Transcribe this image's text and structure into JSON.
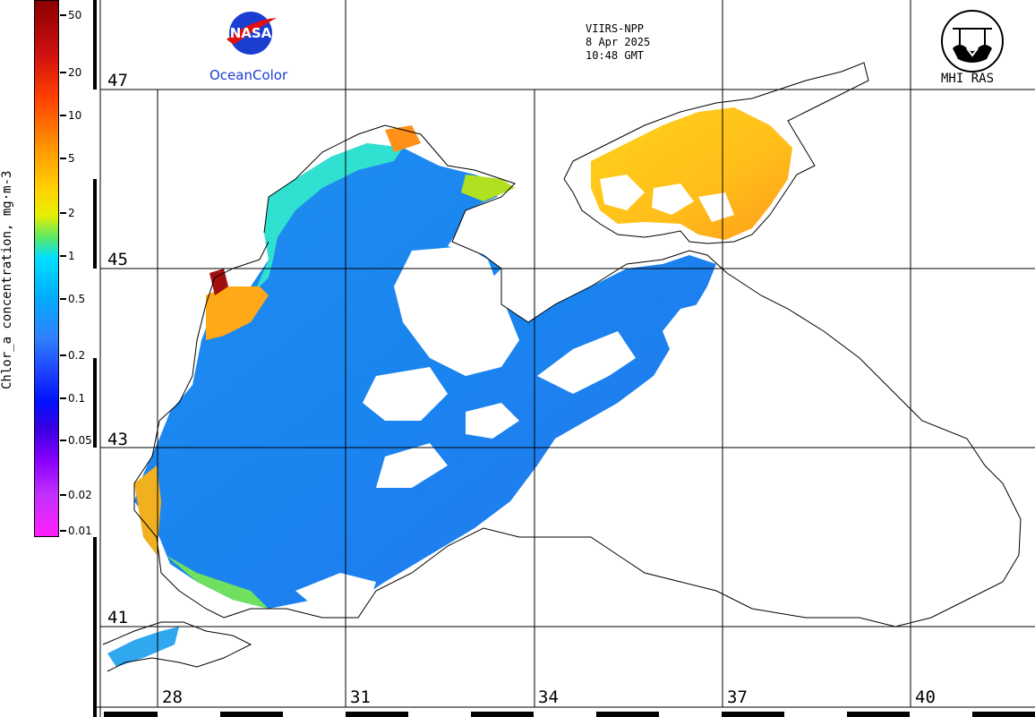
{
  "colorbar": {
    "title": "Chlor_a concentration, mg·m-3",
    "ticks": [
      "50",
      "20",
      "10",
      "5",
      "2",
      "1",
      "0.5",
      "0.2",
      "0.1",
      "0.05",
      "0.02",
      "0.01"
    ]
  },
  "header": {
    "sensor": "VIIRS-NPP",
    "date": "8 Apr 2025",
    "time": "10:48 GMT"
  },
  "logos": {
    "nasa_text": "NASA",
    "oceancolor": "OceanColor",
    "mhi": "MHI RAS"
  },
  "grid": {
    "lat_labels": [
      "47",
      "45",
      "43",
      "41"
    ],
    "lon_labels": [
      "28",
      "31",
      "34",
      "37",
      "40"
    ]
  },
  "colors": {
    "low": "#ff20ff",
    "mid": "#1a8cff",
    "high": "#8b0000",
    "land_outline": "#000000"
  }
}
